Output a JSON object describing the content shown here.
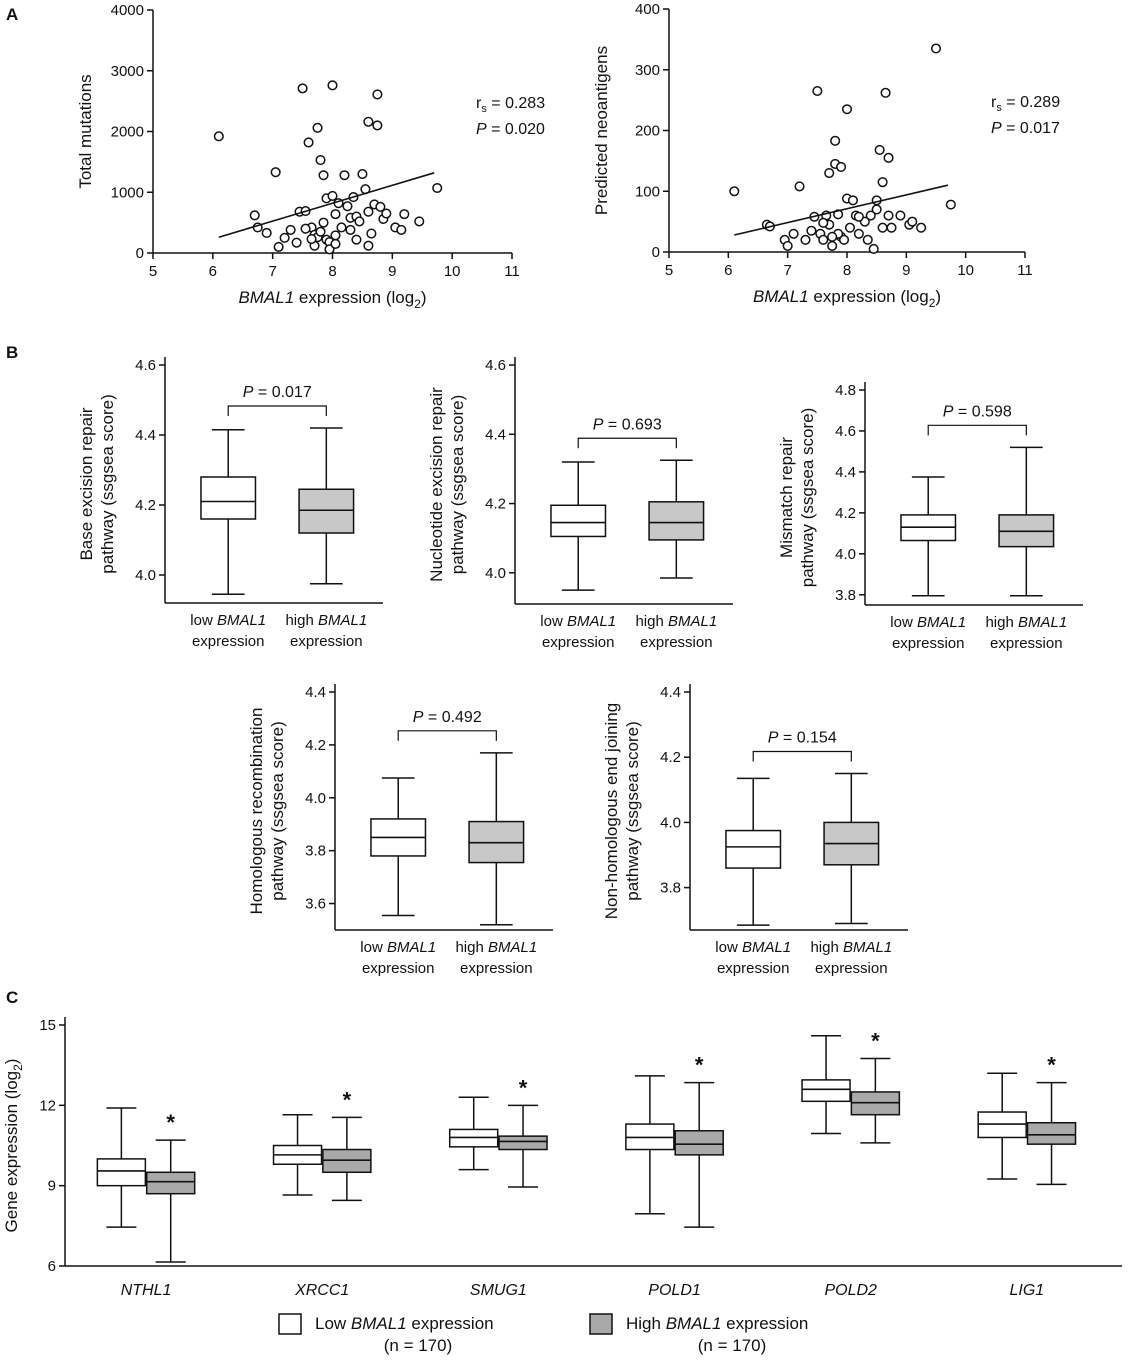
{
  "chart_data": [
    {
      "panel": "A",
      "type": "scatter",
      "id": "scatter_mutations",
      "xlabel_italic": "BMAL1",
      "xlabel_rest": " expression (log",
      "xlabel_sub": "2",
      "xlabel_end": ")",
      "ylabel": "Total mutations",
      "xlim": [
        5,
        11
      ],
      "ylim": [
        0,
        4000
      ],
      "xticks": [
        5,
        6,
        7,
        8,
        9,
        10,
        11
      ],
      "yticks": [
        0,
        1000,
        2000,
        3000,
        4000
      ],
      "stat_r": "r",
      "stat_r_sub": "s",
      "stat_r_value": " = 0.283",
      "stat_p": "P",
      "stat_p_value": " = 0.020",
      "fit": {
        "x": [
          6.1,
          9.7
        ],
        "y": [
          260,
          1320
        ]
      },
      "points": [
        [
          6.1,
          1920
        ],
        [
          6.7,
          620
        ],
        [
          6.75,
          420
        ],
        [
          6.9,
          330
        ],
        [
          7.05,
          1330
        ],
        [
          7.1,
          100
        ],
        [
          7.2,
          250
        ],
        [
          7.3,
          380
        ],
        [
          7.4,
          170
        ],
        [
          7.45,
          680
        ],
        [
          7.5,
          2710
        ],
        [
          7.55,
          690
        ],
        [
          7.6,
          1820
        ],
        [
          7.65,
          420
        ],
        [
          7.7,
          300
        ],
        [
          7.7,
          120
        ],
        [
          7.75,
          2060
        ],
        [
          7.75,
          260
        ],
        [
          7.8,
          1530
        ],
        [
          7.8,
          350
        ],
        [
          7.85,
          1280
        ],
        [
          7.85,
          500
        ],
        [
          7.9,
          900
        ],
        [
          7.9,
          220
        ],
        [
          7.95,
          180
        ],
        [
          7.95,
          60
        ],
        [
          8.0,
          2760
        ],
        [
          8.0,
          940
        ],
        [
          8.05,
          290
        ],
        [
          8.05,
          150
        ],
        [
          8.1,
          820
        ],
        [
          8.15,
          420
        ],
        [
          8.2,
          1280
        ],
        [
          8.25,
          770
        ],
        [
          8.3,
          580
        ],
        [
          8.3,
          380
        ],
        [
          8.35,
          920
        ],
        [
          8.4,
          600
        ],
        [
          8.4,
          220
        ],
        [
          8.45,
          520
        ],
        [
          8.5,
          1300
        ],
        [
          8.55,
          1050
        ],
        [
          8.6,
          2160
        ],
        [
          8.6,
          680
        ],
        [
          8.65,
          320
        ],
        [
          8.7,
          800
        ],
        [
          8.75,
          2610
        ],
        [
          8.75,
          2100
        ],
        [
          8.8,
          760
        ],
        [
          8.85,
          560
        ],
        [
          8.9,
          650
        ],
        [
          9.05,
          420
        ],
        [
          9.15,
          380
        ],
        [
          9.2,
          640
        ],
        [
          9.45,
          520
        ],
        [
          9.75,
          1070
        ],
        [
          7.55,
          400
        ],
        [
          7.65,
          230
        ],
        [
          8.05,
          640
        ],
        [
          8.6,
          120
        ]
      ]
    },
    {
      "panel": "A",
      "type": "scatter",
      "id": "scatter_neoantigens",
      "xlabel_italic": "BMAL1",
      "xlabel_rest": " expression (log",
      "xlabel_sub": "2",
      "xlabel_end": ")",
      "ylabel": "Predicted neoantigens",
      "xlim": [
        5,
        11
      ],
      "ylim": [
        0,
        400
      ],
      "xticks": [
        5,
        6,
        7,
        8,
        9,
        10,
        11
      ],
      "yticks": [
        0,
        100,
        200,
        300,
        400
      ],
      "stat_r": "r",
      "stat_r_sub": "s",
      "stat_r_value": " = 0.289",
      "stat_p": "P",
      "stat_p_value": " = 0.017",
      "fit": {
        "x": [
          6.1,
          9.7
        ],
        "y": [
          28,
          110
        ]
      },
      "points": [
        [
          6.1,
          100
        ],
        [
          6.65,
          45
        ],
        [
          6.7,
          42
        ],
        [
          6.95,
          20
        ],
        [
          7.0,
          10
        ],
        [
          7.1,
          30
        ],
        [
          7.2,
          108
        ],
        [
          7.3,
          20
        ],
        [
          7.4,
          35
        ],
        [
          7.45,
          58
        ],
        [
          7.5,
          265
        ],
        [
          7.55,
          30
        ],
        [
          7.6,
          20
        ],
        [
          7.65,
          60
        ],
        [
          7.7,
          130
        ],
        [
          7.7,
          45
        ],
        [
          7.75,
          10
        ],
        [
          7.8,
          183
        ],
        [
          7.8,
          145
        ],
        [
          7.85,
          62
        ],
        [
          7.9,
          140
        ],
        [
          7.9,
          25
        ],
        [
          7.95,
          20
        ],
        [
          8.0,
          235
        ],
        [
          8.0,
          88
        ],
        [
          8.05,
          40
        ],
        [
          8.1,
          85
        ],
        [
          8.15,
          60
        ],
        [
          8.2,
          30
        ],
        [
          8.3,
          50
        ],
        [
          8.35,
          20
        ],
        [
          8.4,
          60
        ],
        [
          8.45,
          5
        ],
        [
          8.5,
          85
        ],
        [
          8.55,
          168
        ],
        [
          8.6,
          115
        ],
        [
          8.6,
          40
        ],
        [
          8.65,
          262
        ],
        [
          8.7,
          155
        ],
        [
          8.7,
          60
        ],
        [
          8.75,
          40
        ],
        [
          8.9,
          60
        ],
        [
          9.05,
          45
        ],
        [
          9.1,
          50
        ],
        [
          9.25,
          40
        ],
        [
          9.5,
          335
        ],
        [
          9.75,
          78
        ],
        [
          7.6,
          48
        ],
        [
          7.85,
          30
        ],
        [
          8.2,
          58
        ],
        [
          7.75,
          25
        ],
        [
          8.5,
          70
        ]
      ]
    },
    {
      "panel": "B",
      "type": "box",
      "id": "box_ber",
      "ylabel1": "Base excision repair",
      "ylabel2": "pathway (ssgsea score)",
      "ylim": [
        3.92,
        4.6
      ],
      "yticks": [
        4.0,
        4.2,
        4.4,
        4.6
      ],
      "p_italic": "P",
      "p_rest": " = 0.017",
      "groups": [
        {
          "line1_pre": "low ",
          "line1_ital": "BMAL1",
          "line2": "expression",
          "min": 3.945,
          "q1": 4.16,
          "median": 4.21,
          "q3": 4.28,
          "max": 4.415
        },
        {
          "line1_pre": "high ",
          "line1_ital": "BMAL1",
          "line2": "expression",
          "min": 3.975,
          "q1": 4.12,
          "median": 4.185,
          "q3": 4.245,
          "max": 4.42
        }
      ]
    },
    {
      "panel": "B",
      "type": "box",
      "id": "box_ner",
      "ylabel1": "Nucleotide excision repair",
      "ylabel2": "pathway (ssgsea score)",
      "ylim": [
        3.91,
        4.6
      ],
      "yticks": [
        4.0,
        4.2,
        4.4,
        4.6
      ],
      "p_italic": "P",
      "p_rest": " = 0.693",
      "groups": [
        {
          "line1_pre": "low ",
          "line1_ital": "BMAL1",
          "line2": "expression",
          "min": 3.95,
          "q1": 4.105,
          "median": 4.145,
          "q3": 4.195,
          "max": 4.32
        },
        {
          "line1_pre": "high ",
          "line1_ital": "BMAL1",
          "line2": "expression",
          "min": 3.985,
          "q1": 4.095,
          "median": 4.145,
          "q3": 4.205,
          "max": 4.325
        }
      ]
    },
    {
      "panel": "B",
      "type": "box",
      "id": "box_mmr",
      "ylabel1": "Mismatch repair",
      "ylabel2": "pathway (ssgsea score)",
      "ylim": [
        3.75,
        4.8
      ],
      "yticks": [
        3.8,
        4.0,
        4.2,
        4.4,
        4.6,
        4.8
      ],
      "p_italic": "P",
      "p_rest": " = 0.598",
      "groups": [
        {
          "line1_pre": "low ",
          "line1_ital": "BMAL1",
          "line2": "expression",
          "min": 3.795,
          "q1": 4.065,
          "median": 4.13,
          "q3": 4.19,
          "max": 4.375
        },
        {
          "line1_pre": "high ",
          "line1_ital": "BMAL1",
          "line2": "expression",
          "min": 3.795,
          "q1": 4.035,
          "median": 4.11,
          "q3": 4.19,
          "max": 4.52
        }
      ]
    },
    {
      "panel": "B",
      "type": "box",
      "id": "box_hr",
      "ylabel1": "Homologous recombination",
      "ylabel2": "pathway (ssgsea score)",
      "ylim": [
        3.5,
        4.4
      ],
      "yticks": [
        3.6,
        3.8,
        4.0,
        4.2,
        4.4
      ],
      "p_italic": "P",
      "p_rest": " = 0.492",
      "groups": [
        {
          "line1_pre": "low ",
          "line1_ital": "BMAL1",
          "line2": "expression",
          "min": 3.555,
          "q1": 3.78,
          "median": 3.85,
          "q3": 3.92,
          "max": 4.075
        },
        {
          "line1_pre": "high ",
          "line1_ital": "BMAL1",
          "line2": "expression",
          "min": 3.52,
          "q1": 3.755,
          "median": 3.83,
          "q3": 3.91,
          "max": 4.17
        }
      ]
    },
    {
      "panel": "B",
      "type": "box",
      "id": "box_nhej",
      "ylabel1": "Non-homologous end joining",
      "ylabel2": "pathway (ssgsea score)",
      "ylim": [
        3.67,
        4.4
      ],
      "yticks": [
        3.8,
        4.0,
        4.2,
        4.4
      ],
      "p_italic": "P",
      "p_rest": " = 0.154",
      "groups": [
        {
          "line1_pre": "low ",
          "line1_ital": "BMAL1",
          "line2": "expression",
          "min": 3.685,
          "q1": 3.86,
          "median": 3.925,
          "q3": 3.975,
          "max": 4.135
        },
        {
          "line1_pre": "high ",
          "line1_ital": "BMAL1",
          "line2": "expression",
          "min": 3.69,
          "q1": 3.87,
          "median": 3.935,
          "q3": 4.0,
          "max": 4.15
        }
      ]
    },
    {
      "panel": "C",
      "type": "box",
      "id": "box_genes",
      "ylabel_pre": "Gene expression (log",
      "ylabel_sub": "2",
      "ylabel_end": ")",
      "ylim": [
        6,
        15
      ],
      "yticks": [
        6,
        9,
        12,
        15
      ],
      "star": "*",
      "genes": [
        {
          "name": "NTHL1",
          "low": {
            "min": 7.45,
            "q1": 9.0,
            "median": 9.55,
            "q3": 10.0,
            "max": 11.9
          },
          "high": {
            "min": 6.15,
            "q1": 8.7,
            "median": 9.15,
            "q3": 9.5,
            "max": 10.7
          }
        },
        {
          "name": "XRCC1",
          "low": {
            "min": 8.65,
            "q1": 9.8,
            "median": 10.15,
            "q3": 10.5,
            "max": 11.65
          },
          "high": {
            "min": 8.45,
            "q1": 9.5,
            "median": 9.95,
            "q3": 10.35,
            "max": 11.55
          }
        },
        {
          "name": "SMUG1",
          "low": {
            "min": 9.6,
            "q1": 10.45,
            "median": 10.8,
            "q3": 11.1,
            "max": 12.3
          },
          "high": {
            "min": 8.95,
            "q1": 10.35,
            "median": 10.65,
            "q3": 10.85,
            "max": 12.0
          }
        },
        {
          "name": "POLD1",
          "low": {
            "min": 7.95,
            "q1": 10.35,
            "median": 10.8,
            "q3": 11.3,
            "max": 13.1
          },
          "high": {
            "min": 7.45,
            "q1": 10.15,
            "median": 10.55,
            "q3": 11.05,
            "max": 12.85
          }
        },
        {
          "name": "POLD2",
          "low": {
            "min": 10.95,
            "q1": 12.15,
            "median": 12.6,
            "q3": 12.95,
            "max": 14.6
          },
          "high": {
            "min": 10.6,
            "q1": 11.65,
            "median": 12.1,
            "q3": 12.5,
            "max": 13.75
          }
        },
        {
          "name": "LIG1",
          "low": {
            "min": 9.25,
            "q1": 10.8,
            "median": 11.3,
            "q3": 11.75,
            "max": 13.2
          },
          "high": {
            "min": 9.05,
            "q1": 10.55,
            "median": 10.9,
            "q3": 11.35,
            "max": 12.85
          }
        }
      ],
      "legend": [
        {
          "pre": "Low ",
          "ital": "BMAL1",
          "post": " expression",
          "n": "(n = 170)",
          "fill": "#ffffff"
        },
        {
          "pre": "High ",
          "ital": "BMAL1",
          "post": " expression",
          "n": "(n = 170)",
          "fill": "#c8c8c8"
        }
      ]
    }
  ],
  "panel_labels": [
    "A",
    "B",
    "C"
  ],
  "colors": {
    "low_fill": "#ffffff",
    "high_fill": "#c8c8c8",
    "gene_low_fill": "#ffffff",
    "gene_high_fill": "#a9a9a9"
  }
}
